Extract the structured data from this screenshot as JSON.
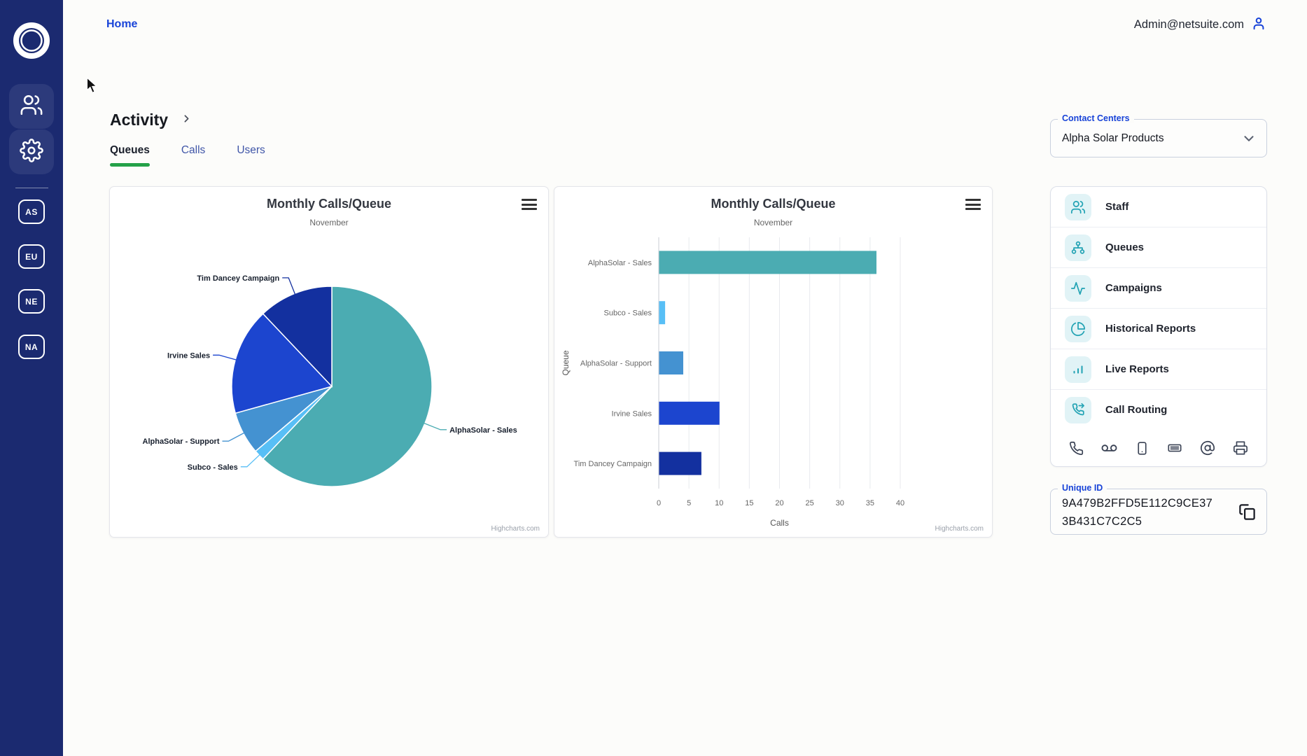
{
  "colors": {
    "sidebar_navy": "#1B2A70",
    "accent_blue": "#1843D8",
    "tab_green": "#24A148",
    "menu_icon_teal": "#23A3B4",
    "menu_icon_bg": "#E1F3F6"
  },
  "sidebar": {
    "logo_icon": "ring-logo-icon",
    "nav_icons": [
      "users-icon",
      "gear-icon"
    ],
    "badges": [
      {
        "label": "AS"
      },
      {
        "label": "EU"
      },
      {
        "label": "NE"
      },
      {
        "label": "NA"
      }
    ]
  },
  "header": {
    "home_label": "Home",
    "admin_email": "Admin@netsuite.com",
    "admin_icon": "person-icon"
  },
  "page": {
    "title": "Activity",
    "tabs": [
      {
        "label": "Queues",
        "active": true
      },
      {
        "label": "Calls",
        "active": false
      },
      {
        "label": "Users",
        "active": false
      }
    ]
  },
  "charts": {
    "credit": "Highcharts.com"
  },
  "chart_data": [
    {
      "type": "pie",
      "title": "Monthly Calls/Queue",
      "subtitle": "November",
      "legend": "none",
      "series": [
        {
          "name": "Calls",
          "points": [
            {
              "name": "AlphaSolar - Sales",
              "y": 36,
              "color": "#4BACB2"
            },
            {
              "name": "Subco - Sales",
              "y": 1,
              "color": "#58BFF6"
            },
            {
              "name": "AlphaSolar - Support",
              "y": 4,
              "color": "#4492D1"
            },
            {
              "name": "Irvine Sales",
              "y": 10,
              "color": "#1C45CF"
            },
            {
              "name": "Tim Dancey Campaign",
              "y": 7,
              "color": "#13309F"
            }
          ]
        }
      ]
    },
    {
      "type": "bar",
      "title": "Monthly Calls/Queue",
      "subtitle": "November",
      "categories": [
        "AlphaSolar - Sales",
        "Subco - Sales",
        "AlphaSolar - Support",
        "Irvine Sales",
        "Tim Dancey Campaign"
      ],
      "values": [
        36,
        1,
        4,
        10,
        7
      ],
      "colors": [
        "#4BACB2",
        "#58BFF6",
        "#4492D1",
        "#1C45CF",
        "#13309F"
      ],
      "xlabel": "Calls",
      "ylabel": "Queue",
      "xlim": [
        0,
        40
      ],
      "ticks": [
        0,
        5,
        10,
        15,
        20,
        25,
        30,
        35,
        40
      ],
      "grid": "vertical"
    }
  ],
  "contact_centers": {
    "label": "Contact Centers",
    "value": "Alpha Solar Products"
  },
  "menu": {
    "items": [
      {
        "label": "Staff",
        "icon": "staff-icon"
      },
      {
        "label": "Queues",
        "icon": "queues-icon"
      },
      {
        "label": "Campaigns",
        "icon": "campaigns-icon"
      },
      {
        "label": "Historical Reports",
        "icon": "historical-reports-icon"
      },
      {
        "label": "Live Reports",
        "icon": "live-reports-icon"
      },
      {
        "label": "Call Routing",
        "icon": "call-routing-icon"
      }
    ],
    "comm_icons": [
      "phone-icon",
      "voicemail-icon",
      "smartphone-icon",
      "keyboard-icon",
      "at-sign-icon",
      "printer-icon"
    ]
  },
  "unique_id": {
    "label": "Unique ID",
    "value_line1": "9A479B2FFD5E112C9CE37",
    "value_line2": "3B431C7C2C5",
    "full_value": "9A479B2FFD5E112C9CE373B431C7C2C5"
  }
}
